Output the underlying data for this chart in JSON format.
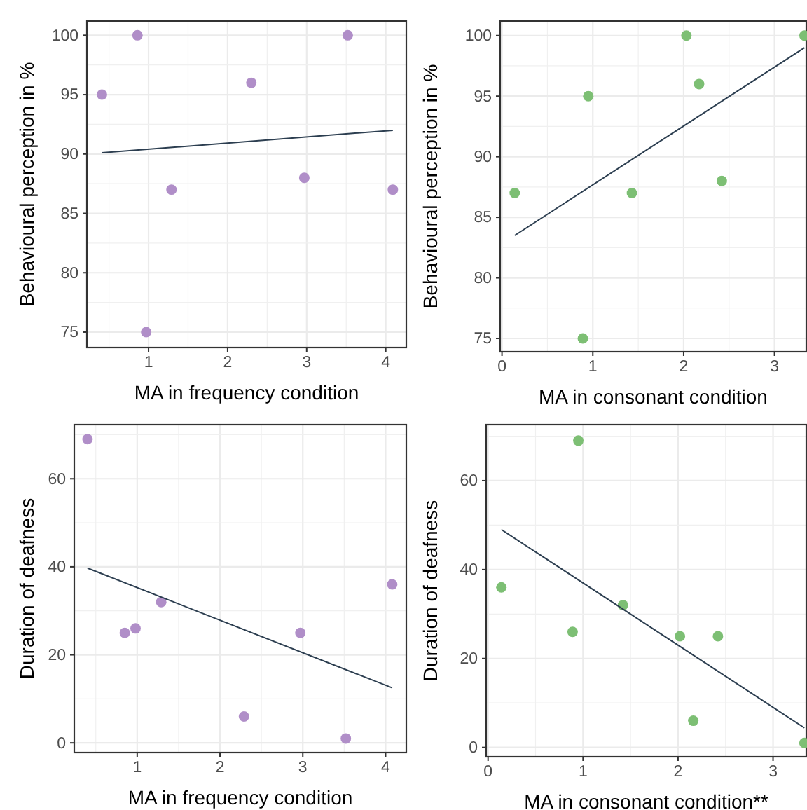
{
  "chart_data": [
    {
      "type": "scatter",
      "xlabel": "MA in frequency condition",
      "ylabel": "Behavioural perception in %",
      "xlim": [
        0.22,
        4.26
      ],
      "ylim": [
        73.7,
        101.2
      ],
      "xticks": [
        1,
        2,
        3,
        4
      ],
      "yticks": [
        75,
        80,
        85,
        90,
        95,
        100
      ],
      "grid": true,
      "marker": "circle",
      "series": [
        {
          "color": "#b08ec8",
          "x": [
            0.41,
            0.86,
            0.97,
            1.29,
            2.3,
            2.97,
            3.52,
            4.09
          ],
          "values": [
            95,
            100,
            75,
            87,
            96,
            88,
            100,
            87
          ]
        },
        {
          "type": "line",
          "marker": "none",
          "color": "#2c3e50",
          "x": [
            0.41,
            4.09
          ],
          "values": [
            90.1,
            92.0
          ]
        }
      ]
    },
    {
      "type": "scatter",
      "xlabel": "MA in consonant condition",
      "ylabel": "Behavioural perception in %",
      "xlim": [
        -0.02,
        3.35
      ],
      "ylim": [
        73.9,
        101.2
      ],
      "xticks": [
        0,
        1,
        2,
        3
      ],
      "yticks": [
        75,
        80,
        85,
        90,
        95,
        100
      ],
      "grid": true,
      "marker": "circle",
      "series": [
        {
          "color": "#7dbf74",
          "x": [
            0.14,
            0.89,
            0.95,
            1.43,
            2.03,
            2.17,
            2.42,
            3.33
          ],
          "values": [
            87,
            75,
            95,
            87,
            100,
            96,
            88,
            100
          ]
        },
        {
          "type": "line",
          "marker": "none",
          "color": "#2c3e50",
          "x": [
            0.14,
            3.33
          ],
          "values": [
            83.5,
            99.0
          ]
        }
      ]
    },
    {
      "type": "scatter",
      "xlabel": "MA in frequency condition",
      "ylabel": "Duration of deafness",
      "xlim": [
        0.24,
        4.25
      ],
      "ylim": [
        -2.2,
        72.3
      ],
      "xticks": [
        1,
        2,
        3,
        4
      ],
      "yticks": [
        0,
        20,
        40,
        60
      ],
      "grid": true,
      "marker": "circle",
      "series": [
        {
          "color": "#b08ec8",
          "x": [
            0.4,
            0.85,
            0.98,
            1.29,
            2.29,
            2.97,
            3.52,
            4.08
          ],
          "values": [
            69,
            25,
            26,
            32,
            6,
            25,
            1,
            36
          ]
        },
        {
          "type": "line",
          "marker": "none",
          "color": "#2c3e50",
          "x": [
            0.4,
            4.08
          ],
          "values": [
            39.7,
            12.5
          ]
        }
      ]
    },
    {
      "type": "scatter",
      "xlabel": "MA in consonant condition**",
      "ylabel": "Duration of deafness",
      "xlim": [
        -0.02,
        3.35
      ],
      "ylim": [
        -2.1,
        72.6
      ],
      "xticks": [
        0,
        1,
        2,
        3
      ],
      "yticks": [
        0,
        20,
        40,
        60
      ],
      "grid": true,
      "marker": "circle",
      "series": [
        {
          "color": "#7dbf74",
          "x": [
            0.14,
            0.89,
            0.95,
            1.42,
            2.02,
            2.16,
            2.42,
            3.33
          ],
          "values": [
            36,
            26,
            69,
            32,
            25,
            6,
            25,
            1
          ]
        },
        {
          "type": "line",
          "marker": "none",
          "color": "#2c3e50",
          "x": [
            0.14,
            3.33
          ],
          "values": [
            49,
            4.4
          ]
        }
      ]
    }
  ]
}
